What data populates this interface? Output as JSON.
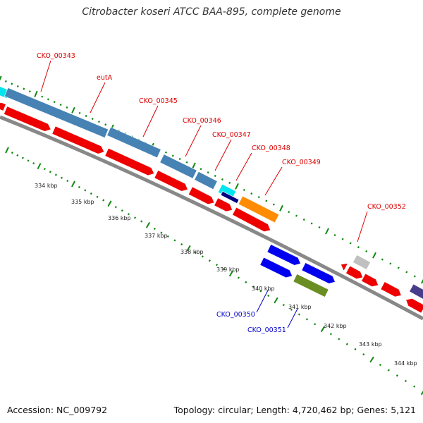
{
  "title": "Citrobacter koseri ATCC BAA-895, complete genome",
  "footer": {
    "accession": "Accession: NC_009792",
    "topology": "Topology: circular; Length: 4,720,462 bp; Genes: 5,121"
  },
  "colors": {
    "label_red": "#dd0000",
    "label_blue": "#0000cc",
    "backbone": "#888888",
    "tick_green": "#118811",
    "cds_red": "#ee0000",
    "steel_blue": "#4682b4",
    "cyan": "#00e5ee",
    "navy": "#000080",
    "orange": "#ff8c00",
    "blue": "#0000ee",
    "olive": "#6b8e23",
    "gray": "#c0c0c0",
    "slate": "#483d8b"
  },
  "gene_labels": [
    {
      "text": "CKO_00343",
      "color": "red"
    },
    {
      "text": "eutA",
      "color": "red"
    },
    {
      "text": "CKO_00345",
      "color": "red"
    },
    {
      "text": "CKO_00346",
      "color": "red"
    },
    {
      "text": "CKO_00347",
      "color": "red"
    },
    {
      "text": "CKO_00348",
      "color": "red"
    },
    {
      "text": "CKO_00349",
      "color": "red"
    },
    {
      "text": "CKO_00352",
      "color": "red"
    },
    {
      "text": "CKO_00350",
      "color": "blue"
    },
    {
      "text": "CKO_00351",
      "color": "blue"
    }
  ],
  "scale_labels": [
    "334 kbp",
    "335 kbp",
    "336 kbp",
    "337 kbp",
    "338 kbp",
    "339 kbp",
    "340 kbp",
    "341 kbp",
    "342 kbp",
    "343 kbp",
    "344 kbp"
  ]
}
